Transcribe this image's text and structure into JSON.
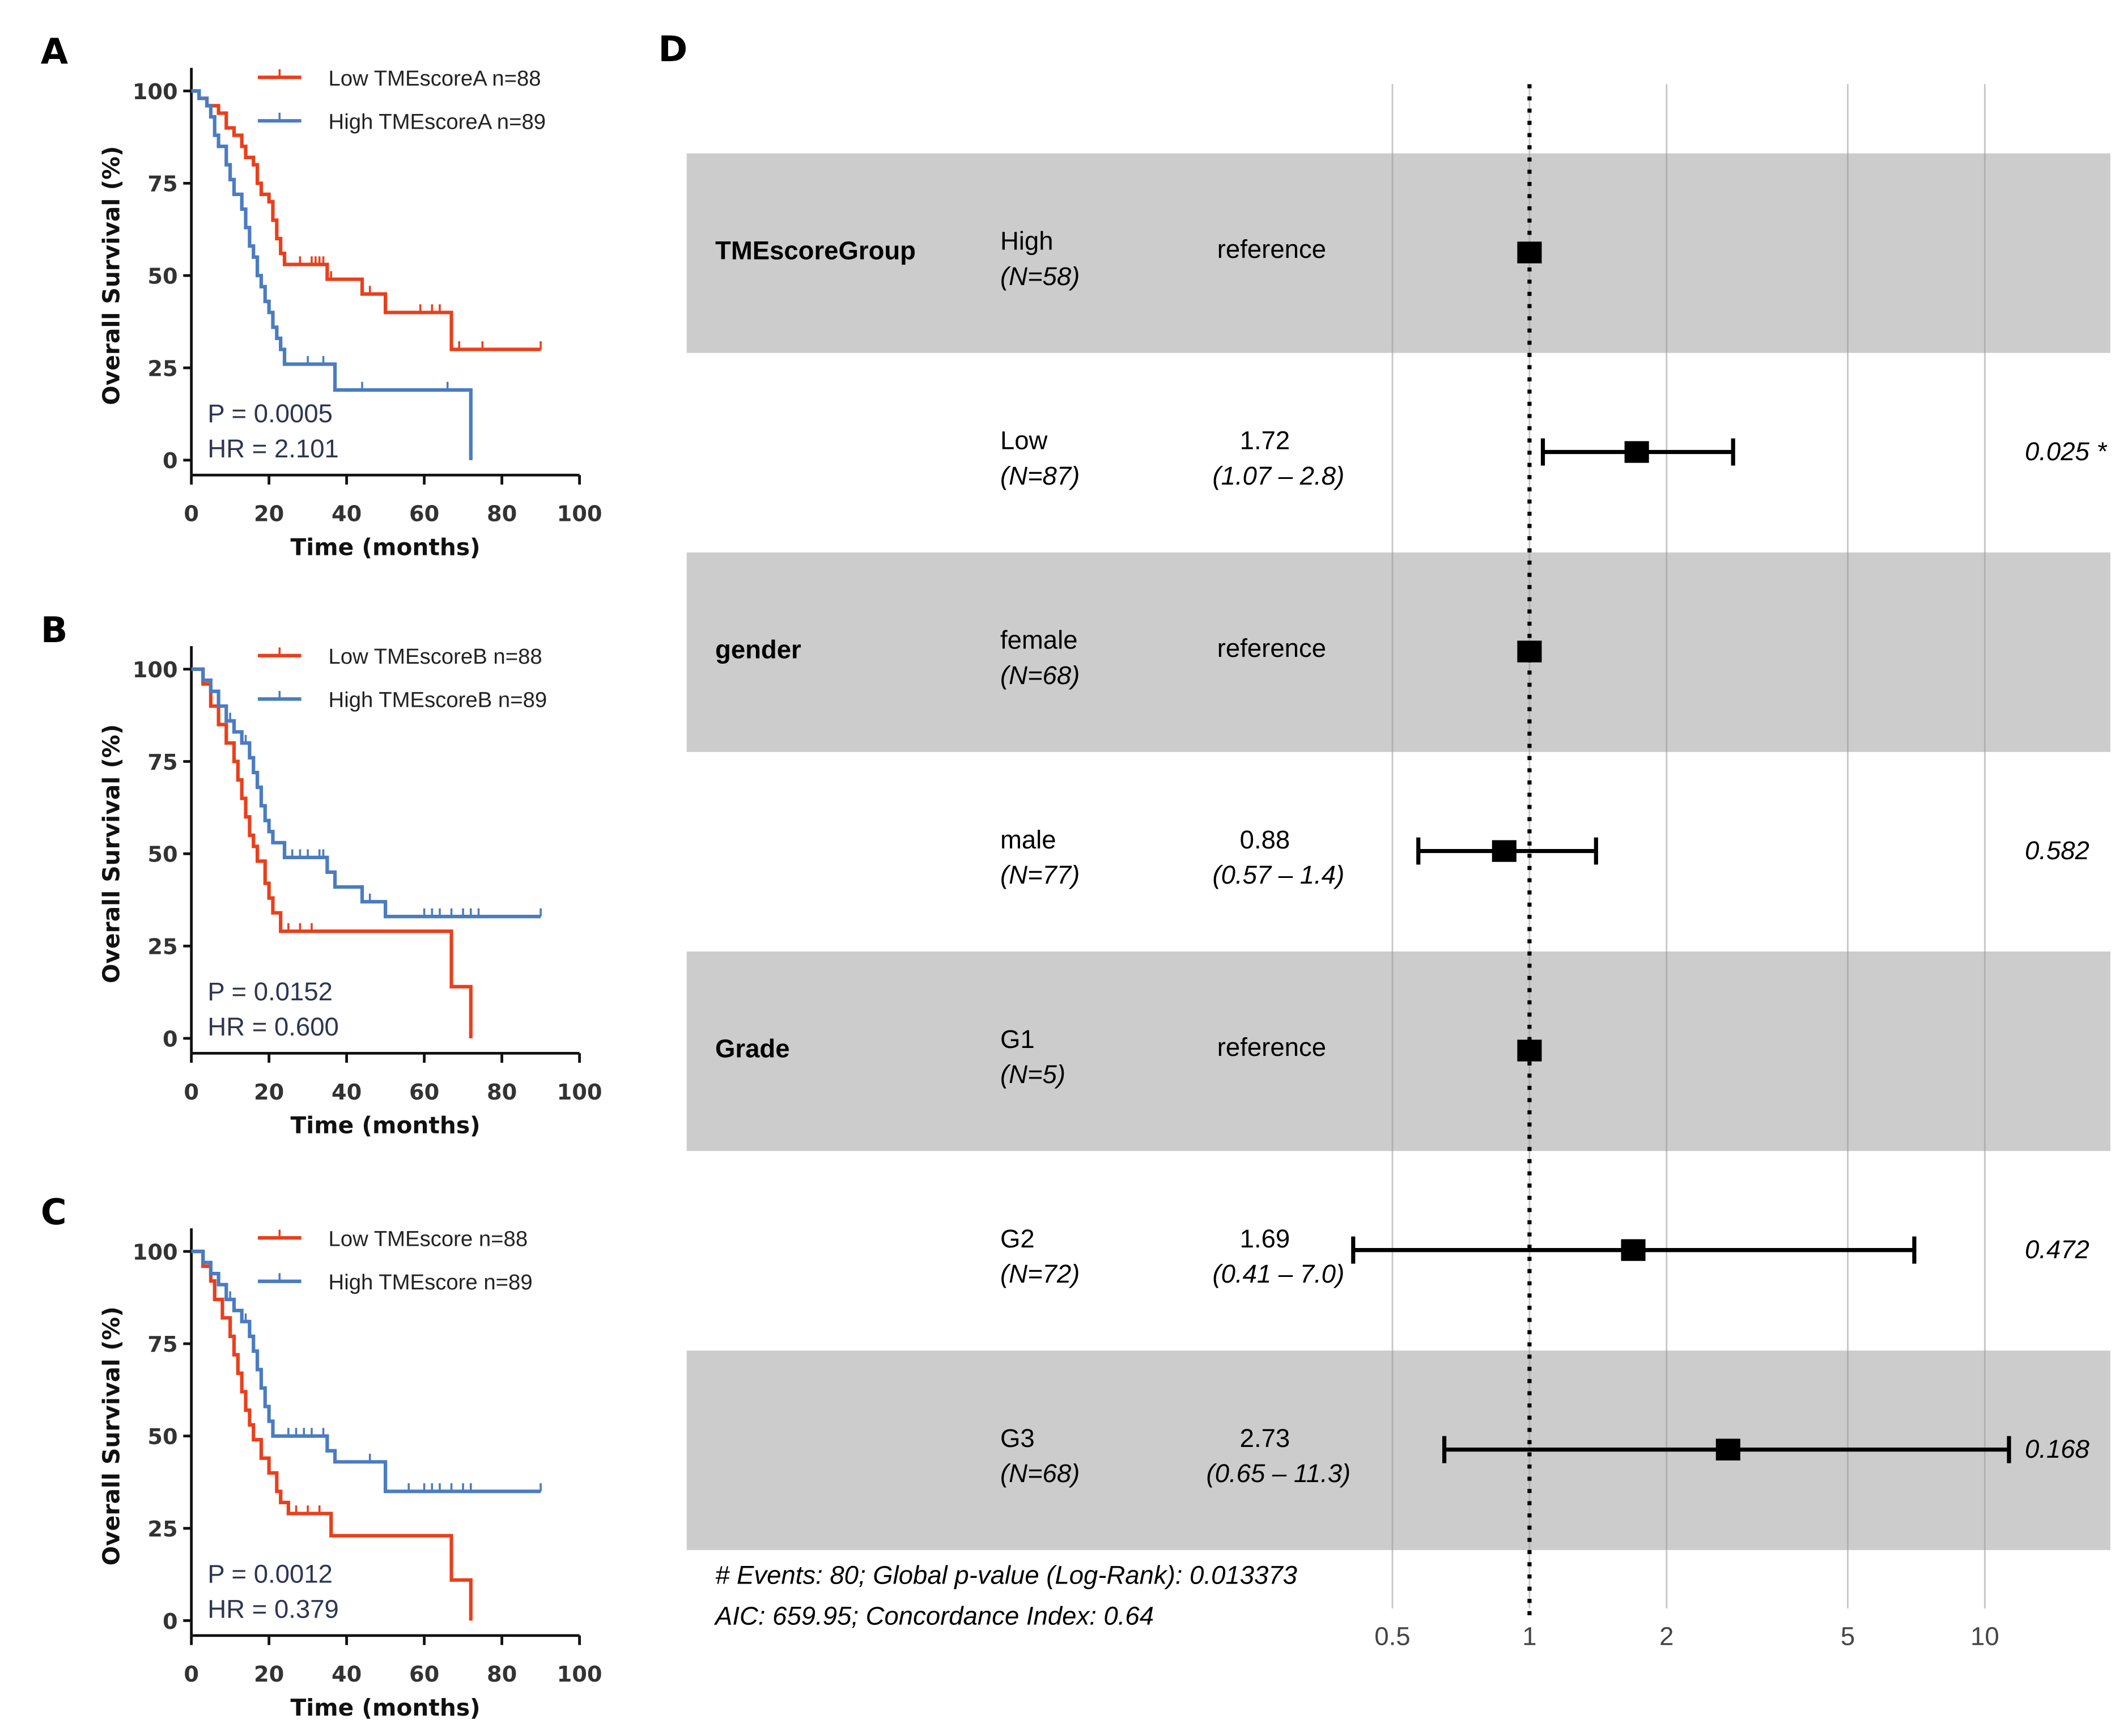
{
  "chart_data": [
    {
      "type": "line",
      "panel_label": "A",
      "xlabel": "Time (months)",
      "ylabel": "Overall Survival (%)",
      "xlim": [
        0,
        100
      ],
      "ylim": [
        0,
        100
      ],
      "xticks": [
        "0",
        "20",
        "40",
        "60",
        "80",
        "100"
      ],
      "yticks": [
        "0",
        "25",
        "50",
        "75",
        "100"
      ],
      "legend_position": "top-right",
      "stats": {
        "p": "P = 0.0005",
        "hr": "HR = 2.101"
      },
      "series": [
        {
          "name": "Low TMEscoreA n=88",
          "color": "#e8401c",
          "end": 90,
          "steps": [
            [
              2,
              98
            ],
            [
              4,
              96
            ],
            [
              7,
              94
            ],
            [
              9,
              90
            ],
            [
              11,
              88
            ],
            [
              13,
              85
            ],
            [
              14,
              82
            ],
            [
              16,
              80
            ],
            [
              17,
              75
            ],
            [
              18,
              72
            ],
            [
              20,
              70
            ],
            [
              21,
              65
            ],
            [
              22,
              60
            ],
            [
              23,
              56
            ],
            [
              24,
              53
            ],
            [
              35,
              49
            ],
            [
              44,
              45
            ],
            [
              50,
              40
            ],
            [
              67,
              30
            ]
          ],
          "censored": [
            28,
            31,
            32,
            33,
            34,
            36,
            46,
            59,
            62,
            64,
            69,
            75,
            90
          ]
        },
        {
          "name": "High TMEscoreA n=89",
          "color": "#4a7cc0",
          "end": 72,
          "steps": [
            [
              2,
              98
            ],
            [
              4,
              96
            ],
            [
              5,
              93
            ],
            [
              6,
              88
            ],
            [
              7,
              85
            ],
            [
              9,
              80
            ],
            [
              10,
              76
            ],
            [
              11,
              72
            ],
            [
              13,
              68
            ],
            [
              14,
              63
            ],
            [
              15,
              58
            ],
            [
              16,
              55
            ],
            [
              17,
              50
            ],
            [
              18,
              47
            ],
            [
              19,
              43
            ],
            [
              20,
              40
            ],
            [
              21,
              36
            ],
            [
              22,
              33
            ],
            [
              23,
              30
            ],
            [
              24,
              26
            ],
            [
              37,
              19
            ],
            [
              72,
              0
            ]
          ],
          "censored": [
            30,
            34,
            44,
            66
          ]
        }
      ]
    },
    {
      "type": "line",
      "panel_label": "B",
      "xlabel": "Time (months)",
      "ylabel": "Overall Survival (%)",
      "xlim": [
        0,
        100
      ],
      "ylim": [
        0,
        100
      ],
      "xticks": [
        "0",
        "20",
        "40",
        "60",
        "80",
        "100"
      ],
      "yticks": [
        "0",
        "25",
        "50",
        "75",
        "100"
      ],
      "legend_position": "top-right",
      "stats": {
        "p": "P = 0.0152",
        "hr": "HR = 0.600"
      },
      "series": [
        {
          "name": "Low TMEscoreB n=88",
          "color": "#e8401c",
          "end": 72,
          "steps": [
            [
              3,
              96
            ],
            [
              5,
              90
            ],
            [
              7,
              85
            ],
            [
              9,
              80
            ],
            [
              11,
              75
            ],
            [
              12,
              70
            ],
            [
              13,
              65
            ],
            [
              14,
              60
            ],
            [
              15,
              55
            ],
            [
              16,
              52
            ],
            [
              17,
              48
            ],
            [
              19,
              42
            ],
            [
              20,
              38
            ],
            [
              21,
              34
            ],
            [
              23,
              29
            ],
            [
              67,
              14
            ],
            [
              72,
              0
            ]
          ],
          "censored": [
            25,
            28,
            31
          ]
        },
        {
          "name": "High TMEscoreB n=89",
          "color": "#4a7cc0",
          "end": 90,
          "steps": [
            [
              3,
              97
            ],
            [
              5,
              94
            ],
            [
              7,
              90
            ],
            [
              9,
              86
            ],
            [
              11,
              83
            ],
            [
              13,
              80
            ],
            [
              15,
              76
            ],
            [
              16,
              72
            ],
            [
              17,
              68
            ],
            [
              18,
              63
            ],
            [
              19,
              59
            ],
            [
              20,
              56
            ],
            [
              21,
              53
            ],
            [
              24,
              49
            ],
            [
              35,
              45
            ],
            [
              37,
              41
            ],
            [
              44,
              37
            ],
            [
              50,
              33
            ]
          ],
          "censored": [
            10,
            14,
            26,
            28,
            30,
            33,
            34,
            46,
            60,
            62,
            64,
            67,
            70,
            72,
            74,
            90
          ]
        }
      ]
    },
    {
      "type": "line",
      "panel_label": "C",
      "xlabel": "Time (months)",
      "ylabel": "Overall Survival (%)",
      "xlim": [
        0,
        100
      ],
      "ylim": [
        0,
        100
      ],
      "xticks": [
        "0",
        "20",
        "40",
        "60",
        "80",
        "100"
      ],
      "yticks": [
        "0",
        "25",
        "50",
        "75",
        "100"
      ],
      "legend_position": "top-right",
      "stats": {
        "p": "P = 0.0012",
        "hr": "HR = 0.379"
      },
      "series": [
        {
          "name": "Low TMEscore n=88",
          "color": "#e8401c",
          "end": 72,
          "steps": [
            [
              3,
              96
            ],
            [
              5,
              92
            ],
            [
              6,
              87
            ],
            [
              8,
              82
            ],
            [
              10,
              77
            ],
            [
              11,
              72
            ],
            [
              12,
              67
            ],
            [
              13,
              62
            ],
            [
              14,
              57
            ],
            [
              15,
              53
            ],
            [
              16,
              49
            ],
            [
              18,
              44
            ],
            [
              20,
              40
            ],
            [
              22,
              35
            ],
            [
              23,
              32
            ],
            [
              25,
              29
            ],
            [
              36,
              23
            ],
            [
              67,
              11
            ],
            [
              72,
              0
            ]
          ],
          "censored": [
            27,
            30,
            33
          ]
        },
        {
          "name": "High TMEscore n=89",
          "color": "#4a7cc0",
          "end": 90,
          "steps": [
            [
              3,
              97
            ],
            [
              5,
              94
            ],
            [
              7,
              91
            ],
            [
              9,
              87
            ],
            [
              11,
              84
            ],
            [
              13,
              81
            ],
            [
              15,
              77
            ],
            [
              16,
              73
            ],
            [
              17,
              68
            ],
            [
              18,
              63
            ],
            [
              19,
              58
            ],
            [
              20,
              54
            ],
            [
              21,
              50
            ],
            [
              35,
              46
            ],
            [
              37,
              43
            ],
            [
              50,
              35
            ]
          ],
          "censored": [
            10,
            14,
            25,
            27,
            29,
            31,
            34,
            46,
            56,
            60,
            62,
            64,
            67,
            70,
            72,
            90
          ]
        }
      ]
    },
    {
      "type": "forest",
      "panel_label": "D",
      "xscale": "log",
      "xticks": [
        "0.5",
        "1",
        "2",
        "5",
        "10"
      ],
      "xlim": [
        0.4,
        16
      ],
      "reference_line": 1,
      "rows": [
        {
          "variable": "TMEscoreGroup",
          "level": "High",
          "n": "(N=58)",
          "hr_text": "reference",
          "ci_text": "",
          "p_text": "",
          "hr": 1,
          "lo": null,
          "hi": null,
          "shaded": true
        },
        {
          "variable": "",
          "level": "Low",
          "n": "(N=87)",
          "hr_text": "1.72",
          "ci_text": "(1.07 –  2.8)",
          "p_text": "0.025 *",
          "hr": 1.72,
          "lo": 1.07,
          "hi": 2.8,
          "shaded": false
        },
        {
          "variable": "gender",
          "level": "female",
          "n": "(N=68)",
          "hr_text": "reference",
          "ci_text": "",
          "p_text": "",
          "hr": 1,
          "lo": null,
          "hi": null,
          "shaded": true
        },
        {
          "variable": "",
          "level": "male",
          "n": "(N=77)",
          "hr_text": "0.88",
          "ci_text": "(0.57 –  1.4)",
          "p_text": "0.582",
          "hr": 0.88,
          "lo": 0.57,
          "hi": 1.4,
          "shaded": false
        },
        {
          "variable": "Grade",
          "level": "G1",
          "n": "(N=5)",
          "hr_text": "reference",
          "ci_text": "",
          "p_text": "",
          "hr": 1,
          "lo": null,
          "hi": null,
          "shaded": true
        },
        {
          "variable": "",
          "level": "G2",
          "n": "(N=72)",
          "hr_text": "1.69",
          "ci_text": "(0.41 –  7.0)",
          "p_text": "0.472",
          "hr": 1.69,
          "lo": 0.41,
          "hi": 7.0,
          "shaded": false
        },
        {
          "variable": "",
          "level": "G3",
          "n": "(N=68)",
          "hr_text": "2.73",
          "ci_text": "(0.65 – 11.3)",
          "p_text": "0.168",
          "hr": 2.73,
          "lo": 0.65,
          "hi": 11.3,
          "shaded": true
        }
      ],
      "footer": [
        "# Events: 80; Global p-value (Log-Rank): 0.013373",
        "AIC: 659.95; Concordance Index: 0.64"
      ]
    }
  ],
  "colors": {
    "low": "#e8401c",
    "high": "#4a7cc0",
    "band": "#cccccc"
  }
}
